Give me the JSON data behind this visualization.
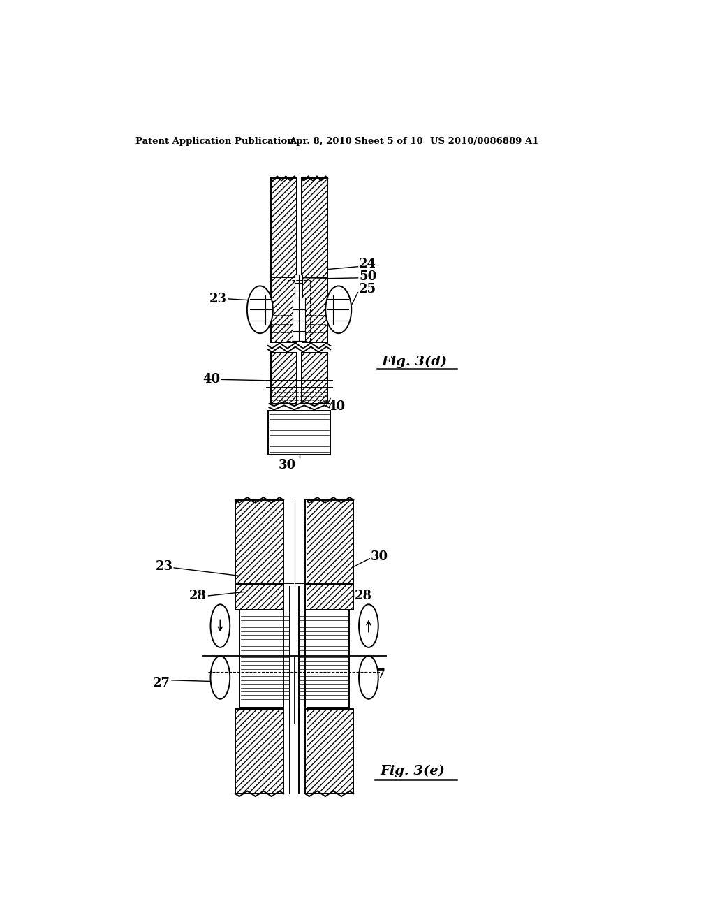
{
  "background_color": "#ffffff",
  "header_text": "Patent Application Publication",
  "header_date": "Apr. 8, 2010",
  "header_sheet": "Sheet 5 of 10",
  "header_patent": "US 2010/0086889 A1",
  "fig_d_label": "Fig. 3(d)",
  "fig_e_label": "Fig. 3(e)"
}
